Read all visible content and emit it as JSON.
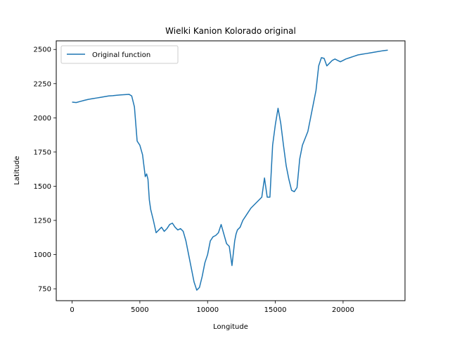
{
  "chart_data": {
    "type": "line",
    "title": "Wielki Kanion Kolorado original",
    "xlabel": "Longitude",
    "ylabel": "Latitude",
    "xlim": [
      -1170,
      24570
    ],
    "ylim": [
      663,
      2563
    ],
    "xticks": [
      0,
      5000,
      10000,
      15000,
      20000
    ],
    "yticks": [
      750,
      1000,
      1250,
      1500,
      1750,
      2000,
      2250,
      2500
    ],
    "legend": {
      "placement": "top-left"
    },
    "colors": {
      "series": "#1f77b4"
    },
    "series": [
      {
        "name": "Original function",
        "x": [
          0,
          300,
          600,
          900,
          1200,
          1500,
          1800,
          2100,
          2400,
          2700,
          3000,
          3300,
          3600,
          3900,
          4200,
          4400,
          4600,
          4800,
          5000,
          5200,
          5400,
          5500,
          5600,
          5700,
          5800,
          6000,
          6200,
          6400,
          6600,
          6800,
          7000,
          7200,
          7400,
          7600,
          7800,
          8000,
          8200,
          8400,
          8600,
          8800,
          9000,
          9200,
          9400,
          9600,
          9800,
          10000,
          10200,
          10400,
          10600,
          10800,
          11000,
          11200,
          11400,
          11600,
          11800,
          12000,
          12100,
          12200,
          12400,
          12600,
          12800,
          13000,
          13200,
          13400,
          13600,
          13800,
          14000,
          14200,
          14400,
          14600,
          14800,
          15000,
          15200,
          15400,
          15600,
          15800,
          16000,
          16200,
          16400,
          16600,
          16800,
          17000,
          17200,
          17400,
          17600,
          17800,
          18000,
          18200,
          18400,
          18600,
          18800,
          19000,
          19200,
          19400,
          19600,
          19800,
          20000,
          20200,
          20500,
          20800,
          21100,
          21400,
          21700,
          22000,
          22300,
          22600,
          22900,
          23300
        ],
        "y": [
          2115,
          2112,
          2120,
          2128,
          2135,
          2140,
          2145,
          2150,
          2155,
          2160,
          2162,
          2165,
          2168,
          2170,
          2172,
          2160,
          2080,
          1830,
          1800,
          1730,
          1570,
          1590,
          1550,
          1400,
          1330,
          1250,
          1160,
          1180,
          1200,
          1170,
          1190,
          1220,
          1230,
          1200,
          1180,
          1190,
          1170,
          1100,
          1000,
          900,
          800,
          740,
          760,
          840,
          940,
          1000,
          1100,
          1130,
          1140,
          1160,
          1220,
          1150,
          1080,
          1060,
          920,
          1100,
          1150,
          1180,
          1200,
          1250,
          1280,
          1310,
          1340,
          1360,
          1380,
          1400,
          1420,
          1560,
          1420,
          1420,
          1800,
          1950,
          2070,
          1960,
          1800,
          1650,
          1550,
          1470,
          1460,
          1490,
          1700,
          1800,
          1850,
          1900,
          2000,
          2100,
          2200,
          2380,
          2440,
          2435,
          2380,
          2400,
          2420,
          2430,
          2420,
          2410,
          2420,
          2430,
          2440,
          2450,
          2460,
          2465,
          2470,
          2475,
          2480,
          2485,
          2490,
          2495
        ]
      }
    ]
  }
}
